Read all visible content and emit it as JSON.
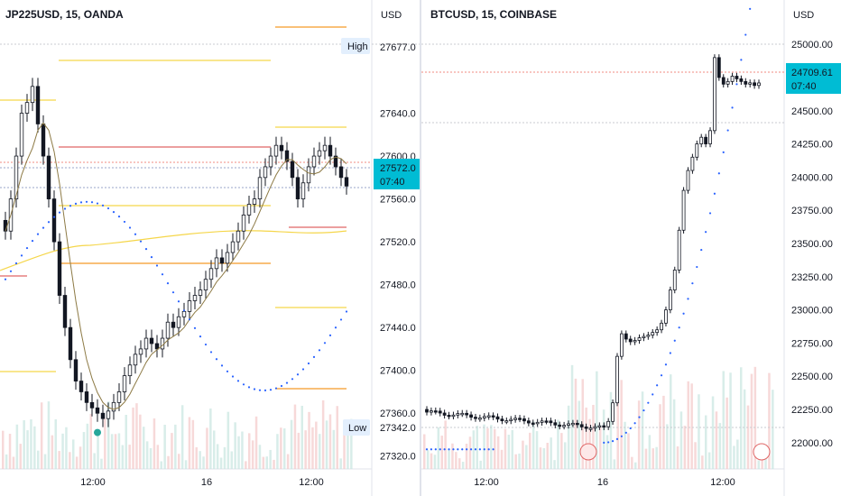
{
  "chart_data": [
    {
      "type": "candlestick",
      "title": "JP225USD, 15, OANDA",
      "currency_label": "USD",
      "y_ticks": [
        "27640.0",
        "27600.0",
        "27560.0",
        "27520.0",
        "27480.0",
        "27440.0",
        "27400.0",
        "27360.0",
        "27320.0"
      ],
      "y_tick_values": [
        27640,
        27600,
        27560,
        27520,
        27480,
        27440,
        27400,
        27360,
        27320
      ],
      "ylim": [
        27308,
        27712
      ],
      "x_ticks": [
        "12:00",
        "16",
        "12:00"
      ],
      "high_label": "High",
      "high_value": "27677.0",
      "low_label": "Low",
      "low_value": "27342.0",
      "last_price": "27572.0",
      "countdown": "07:40",
      "colors": {
        "up": "#131722",
        "down": "#131722",
        "ma": "#8d7a45",
        "dots": "#2962ff",
        "yellow": "#f5d64a",
        "orange": "#f59b27",
        "red": "#e06666",
        "badge": "#00bcd4"
      }
    },
    {
      "type": "candlestick",
      "title": "BTCUSD, 15, COINBASE",
      "currency_label": "USD",
      "y_ticks": [
        "25000.00",
        "24500.00",
        "24250.00",
        "24000.00",
        "23750.00",
        "23500.00",
        "23250.00",
        "23000.00",
        "22750.00",
        "22500.00",
        "22250.00",
        "22000.00"
      ],
      "y_tick_values": [
        25000,
        24500,
        24250,
        24000,
        23750,
        23500,
        23250,
        23000,
        22750,
        22500,
        22250,
        22000
      ],
      "ylim": [
        21870,
        25130
      ],
      "x_ticks": [
        "12:00",
        "16",
        "12:00"
      ],
      "last_price": "24709.61",
      "countdown": "07:40",
      "colors": {
        "candle": "#131722",
        "dots": "#2962ff",
        "badge": "#00bcd4",
        "redline": "#f28b82"
      }
    }
  ]
}
